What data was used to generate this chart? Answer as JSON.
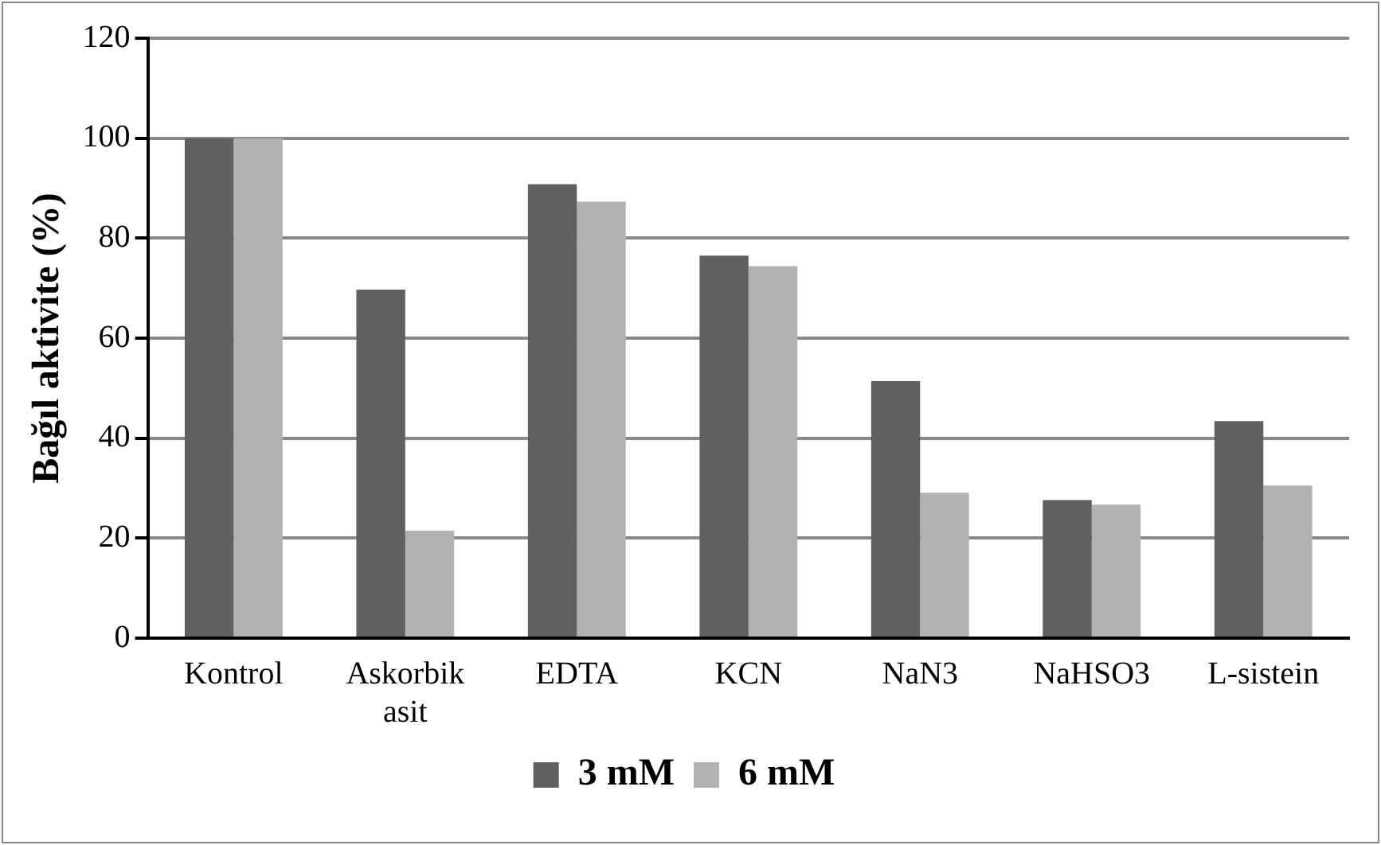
{
  "chart_data": {
    "type": "bar",
    "ylabel": "Bağıl aktivite (%)",
    "categories": [
      "Kontrol",
      "Askorbik asit",
      "EDTA",
      "KCN",
      "NaN3",
      "NaHSO3",
      "L-sistein"
    ],
    "series": [
      {
        "name": "3 mM",
        "color": "#606060",
        "values": [
          100,
          69.7,
          90.8,
          76.5,
          51.4,
          27.6,
          43.4
        ]
      },
      {
        "name": "6 mM",
        "color": "#b2b2b2",
        "values": [
          100,
          21.5,
          87.3,
          74.4,
          29.1,
          26.7,
          30.5
        ]
      }
    ],
    "ylim": [
      0,
      120
    ],
    "yticks": [
      0,
      20,
      40,
      60,
      80,
      100,
      120
    ],
    "grid": "y",
    "legend": "bottom"
  }
}
